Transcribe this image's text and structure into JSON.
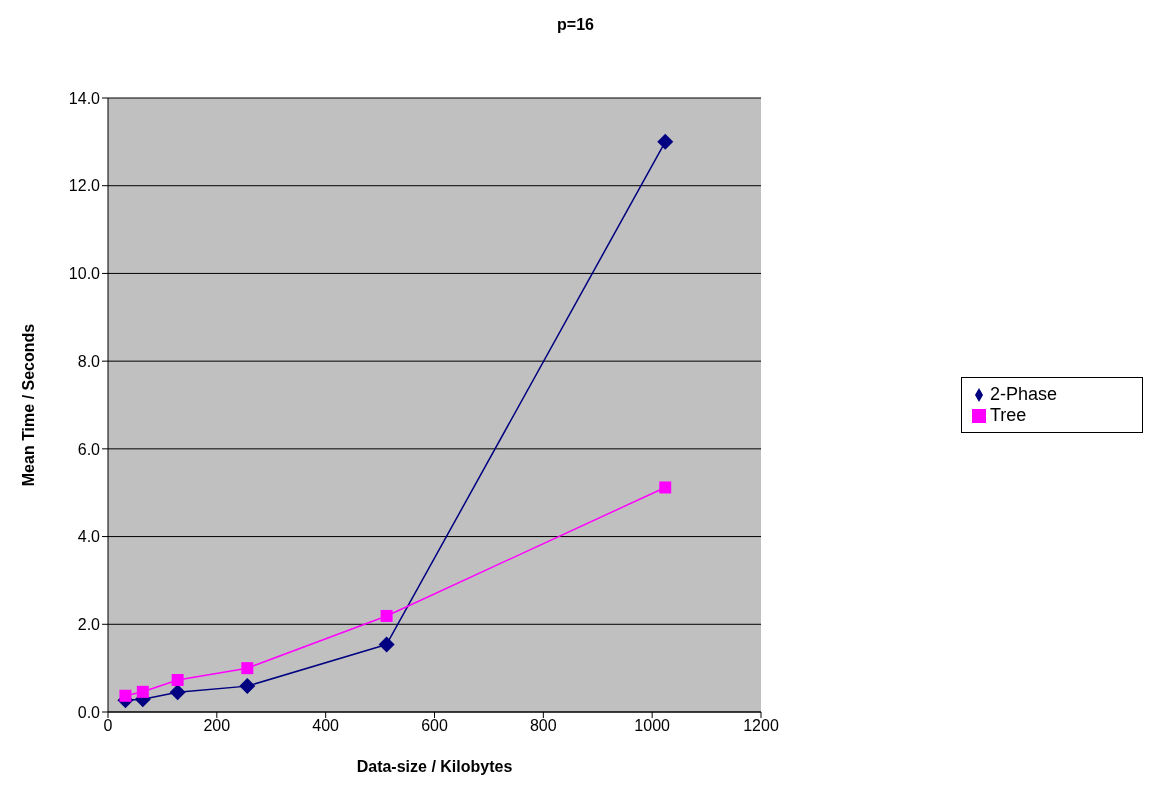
{
  "chart_data": {
    "type": "line",
    "title": "p=16",
    "xlabel": "Data-size / Kilobytes",
    "ylabel": "Mean Time / Seconds",
    "x": [
      32,
      64,
      128,
      256,
      512,
      1024
    ],
    "series": [
      {
        "name": "2-Phase",
        "color": "#000080",
        "marker": "diamond",
        "values": [
          0.27,
          0.29,
          0.45,
          0.59,
          1.54,
          13.0
        ]
      },
      {
        "name": "Tree",
        "color": "#ff00ff",
        "marker": "square",
        "values": [
          0.37,
          0.46,
          0.73,
          1.0,
          2.19,
          5.12
        ]
      }
    ],
    "xlim": [
      0,
      1200
    ],
    "xticks": [
      0,
      200,
      400,
      600,
      800,
      1000,
      1200
    ],
    "ylim": [
      0,
      14
    ],
    "yticks": [
      {
        "value": 0,
        "label": "0.0"
      },
      {
        "value": 2,
        "label": "2.0"
      },
      {
        "value": 4,
        "label": "4.0"
      },
      {
        "value": 6,
        "label": "6.0"
      },
      {
        "value": 8,
        "label": "8.0"
      },
      {
        "value": 10,
        "label": "10.0"
      },
      {
        "value": 12,
        "label": "12.0"
      },
      {
        "value": 14,
        "label": "14.0"
      }
    ],
    "grid": "y",
    "legend": "right",
    "line_style": "solid"
  }
}
